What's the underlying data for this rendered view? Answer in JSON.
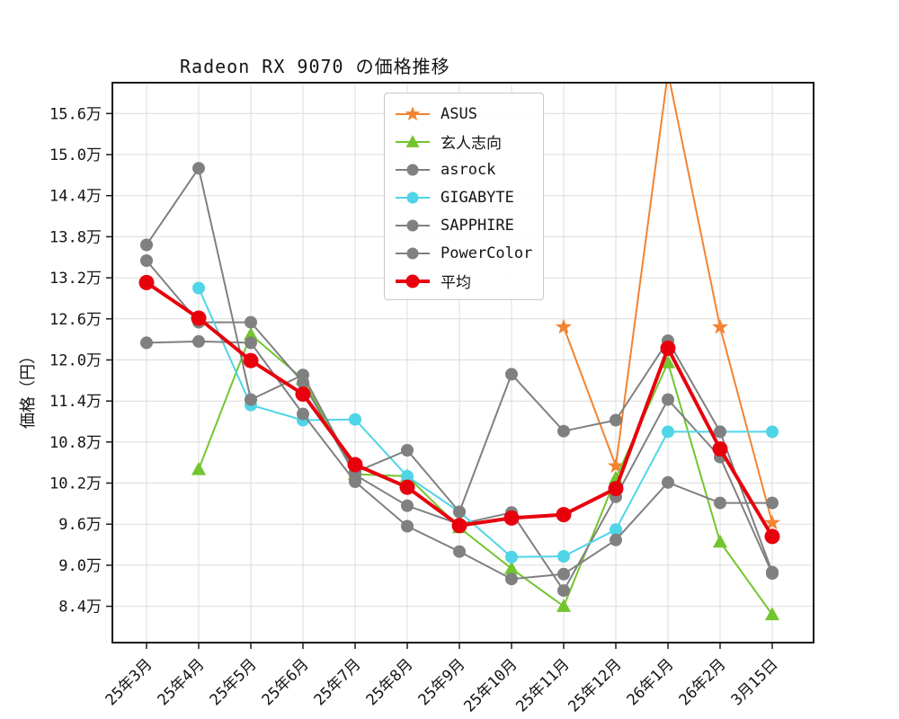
{
  "chart_data": {
    "type": "line",
    "title": "Radeon RX 9070 の価格推移",
    "xlabel": "",
    "ylabel": "価格（円）",
    "y_unit": "万円",
    "y_tick_suffix": "万",
    "grid": true,
    "legend_position": "upper-center-inside",
    "ylim": [
      7.87,
      16.05
    ],
    "y_ticks": [
      15.6,
      15.0,
      14.4,
      13.8,
      13.2,
      12.6,
      12.0,
      11.4,
      10.8,
      10.2,
      9.6,
      9.0,
      8.4
    ],
    "categories": [
      "25年3月",
      "25年4月",
      "25年5月",
      "25年6月",
      "25年7月",
      "25年8月",
      "25年9月",
      "25年10月",
      "25年11月",
      "25年12月",
      "26年1月",
      "26年2月",
      "3月15日"
    ],
    "series": [
      {
        "name": "ASUS",
        "color": "#f28332",
        "marker": "star",
        "line_width": 2,
        "values": [
          null,
          null,
          null,
          null,
          null,
          null,
          null,
          null,
          12.48,
          10.45,
          16.2,
          12.48,
          9.62
        ]
      },
      {
        "name": "玄人志向",
        "color": "#73c52f",
        "marker": "triangle",
        "line_width": 2,
        "values": [
          null,
          10.4,
          12.37,
          11.72,
          10.33,
          10.3,
          9.55,
          8.95,
          8.4,
          10.27,
          11.96,
          9.34,
          8.28
        ]
      },
      {
        "name": "asrock",
        "color": "#808080",
        "marker": "circle",
        "line_width": 2,
        "values": [
          13.45,
          12.55,
          12.55,
          11.67,
          10.32,
          9.87,
          9.6,
          9.77,
          8.63,
          10.0,
          11.42,
          10.58,
          8.88
        ]
      },
      {
        "name": "GIGABYTE",
        "color": "#4fd5e7",
        "marker": "circle",
        "line_width": 2,
        "values": [
          null,
          13.05,
          11.34,
          11.12,
          11.13,
          10.3,
          9.78,
          9.12,
          9.13,
          9.52,
          10.95,
          10.95,
          10.95
        ]
      },
      {
        "name": "SAPPHIRE",
        "color": "#808080",
        "marker": "circle",
        "line_width": 2,
        "values": [
          13.68,
          14.8,
          11.42,
          11.78,
          10.36,
          10.68,
          9.78,
          11.79,
          10.96,
          11.12,
          12.28,
          10.95,
          8.9
        ]
      },
      {
        "name": "PowerColor",
        "color": "#808080",
        "marker": "circle",
        "line_width": 2,
        "values": [
          12.25,
          12.27,
          12.25,
          11.21,
          10.22,
          9.57,
          9.2,
          8.8,
          8.87,
          9.37,
          10.21,
          9.91,
          9.91
        ]
      },
      {
        "name": "平均",
        "color": "#e8000d",
        "marker": "circle",
        "line_width": 4,
        "marker_size": 8.5,
        "values": [
          13.13,
          12.61,
          11.99,
          11.5,
          10.47,
          10.14,
          9.58,
          9.69,
          9.74,
          10.12,
          12.17,
          10.7,
          9.42
        ]
      }
    ]
  }
}
